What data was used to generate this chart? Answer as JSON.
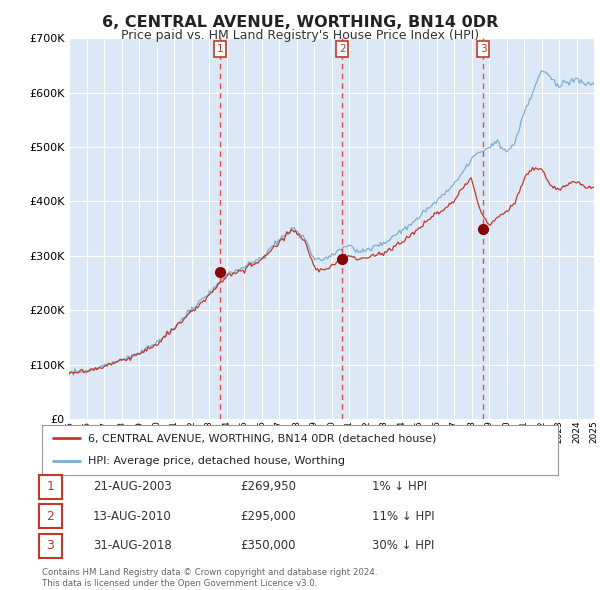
{
  "title": "6, CENTRAL AVENUE, WORTHING, BN14 0DR",
  "subtitle": "Price paid vs. HM Land Registry's House Price Index (HPI)",
  "background_color": "#ffffff",
  "plot_bg_color": "#dce8f5",
  "grid_color": "#ffffff",
  "hpi_color": "#7bafd4",
  "price_color": "#c0392b",
  "sale_marker_color": "#8b0000",
  "dashed_line_color": "#e05050",
  "ylim": [
    0,
    700000
  ],
  "yticks": [
    0,
    100000,
    200000,
    300000,
    400000,
    500000,
    600000,
    700000
  ],
  "xmin": 1995,
  "xmax": 2025,
  "sales": [
    {
      "date_num": 2003.646,
      "price": 269950,
      "label": "1"
    },
    {
      "date_num": 2010.619,
      "price": 295000,
      "label": "2"
    },
    {
      "date_num": 2018.66,
      "price": 350000,
      "label": "3"
    }
  ],
  "legend_items": [
    {
      "label": "6, CENTRAL AVENUE, WORTHING, BN14 0DR (detached house)",
      "color": "#c0392b",
      "lw": 1.8
    },
    {
      "label": "HPI: Average price, detached house, Worthing",
      "color": "#7bafd4",
      "lw": 1.8
    }
  ],
  "table_rows": [
    {
      "num": "1",
      "date": "21-AUG-2003",
      "price": "£269,950",
      "hpi": "1% ↓ HPI"
    },
    {
      "num": "2",
      "date": "13-AUG-2010",
      "price": "£295,000",
      "hpi": "11% ↓ HPI"
    },
    {
      "num": "3",
      "date": "31-AUG-2018",
      "price": "£350,000",
      "hpi": "30% ↓ HPI"
    }
  ],
  "footer": "Contains HM Land Registry data © Crown copyright and database right 2024.\nThis data is licensed under the Open Government Licence v3.0."
}
